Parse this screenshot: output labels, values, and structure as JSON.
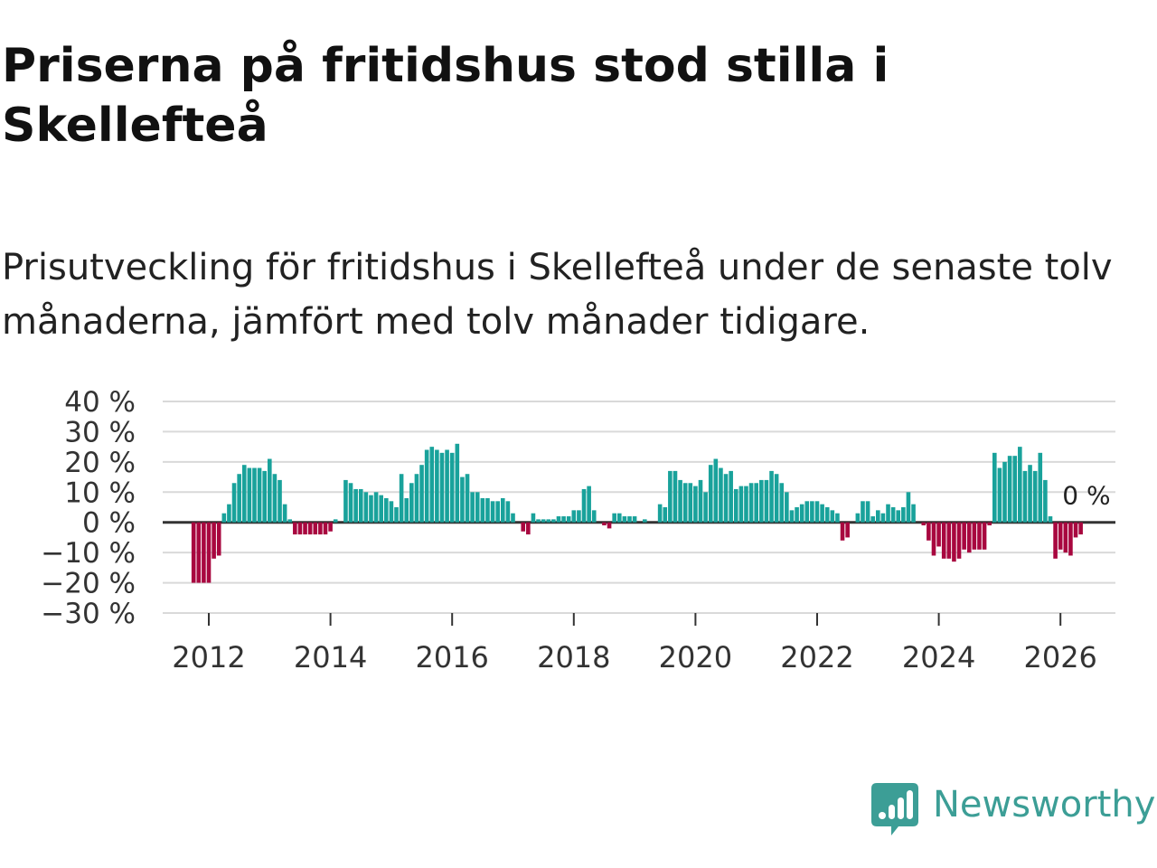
{
  "title": "Priserna på fritidshus stod stilla i Skellefteå",
  "subtitle": "Prisutveckling för fritidshus i Skellefteå under de senaste tolv månaderna, jämfört med tolv månader tidigare.",
  "brand": {
    "name": "Newsworthy"
  },
  "colors": {
    "positive": "#19a29b",
    "negative": "#a8073f",
    "grid": "#d9d9d9",
    "zero_line": "#333333",
    "brand": "#3c9e96"
  },
  "chart_data": {
    "type": "bar",
    "title": "Priserna på fritidshus stod stilla i Skellefteå",
    "xlabel": "",
    "ylabel": "",
    "ylim": [
      -30,
      40
    ],
    "yticks": [
      40,
      30,
      20,
      10,
      0,
      -10,
      -20,
      -30
    ],
    "ytick_labels": [
      "40 %",
      "30 %",
      "20 %",
      "10 %",
      "0 %",
      "−10 %",
      "−20 %",
      "−30 %"
    ],
    "xticks": [
      2012,
      2014,
      2016,
      2018,
      2020,
      2022,
      2024,
      2026
    ],
    "xtick_labels": [
      "2012",
      "2014",
      "2016",
      "2018",
      "2020",
      "2022",
      "2024",
      "2026"
    ],
    "x_start": 2011.75,
    "step": 0.0833333,
    "last_value_label": "0 %",
    "series": [
      {
        "name": "Prisutveckling",
        "values": [
          -20,
          -20,
          -20,
          -20,
          -12,
          -11,
          3,
          6,
          13,
          16,
          19,
          18,
          18,
          18,
          17,
          21,
          16,
          14,
          6,
          1,
          -4,
          -4,
          -4,
          -4,
          -4,
          -4,
          -4,
          -3,
          1,
          0,
          14,
          13,
          11,
          11,
          10,
          9,
          10,
          9,
          8,
          7,
          5,
          16,
          8,
          13,
          16,
          19,
          24,
          25,
          24,
          23,
          24,
          23,
          26,
          15,
          16,
          10,
          10,
          8,
          8,
          7,
          7,
          8,
          7,
          3,
          0,
          -3,
          -4,
          3,
          1,
          1,
          1,
          1,
          2,
          2,
          2,
          4,
          4,
          11,
          12,
          4,
          0,
          -1,
          -2,
          3,
          3,
          2,
          2,
          2,
          0,
          1,
          0,
          0,
          6,
          5,
          17,
          17,
          14,
          13,
          13,
          12,
          14,
          10,
          19,
          21,
          18,
          16,
          17,
          11,
          12,
          12,
          13,
          13,
          14,
          14,
          17,
          16,
          13,
          10,
          4,
          5,
          6,
          7,
          7,
          7,
          6,
          5,
          4,
          3,
          -6,
          -5,
          0,
          3,
          7,
          7,
          2,
          4,
          3,
          6,
          5,
          4,
          5,
          10,
          6,
          0,
          -1,
          -6,
          -11,
          -8,
          -12,
          -12,
          -13,
          -12,
          -9,
          -10,
          -9,
          -9,
          -9,
          -1,
          23,
          18,
          20,
          22,
          22,
          25,
          17,
          19,
          17,
          23,
          14,
          2,
          -12,
          -9,
          -10,
          -11,
          -5,
          -4,
          0
        ]
      }
    ]
  }
}
